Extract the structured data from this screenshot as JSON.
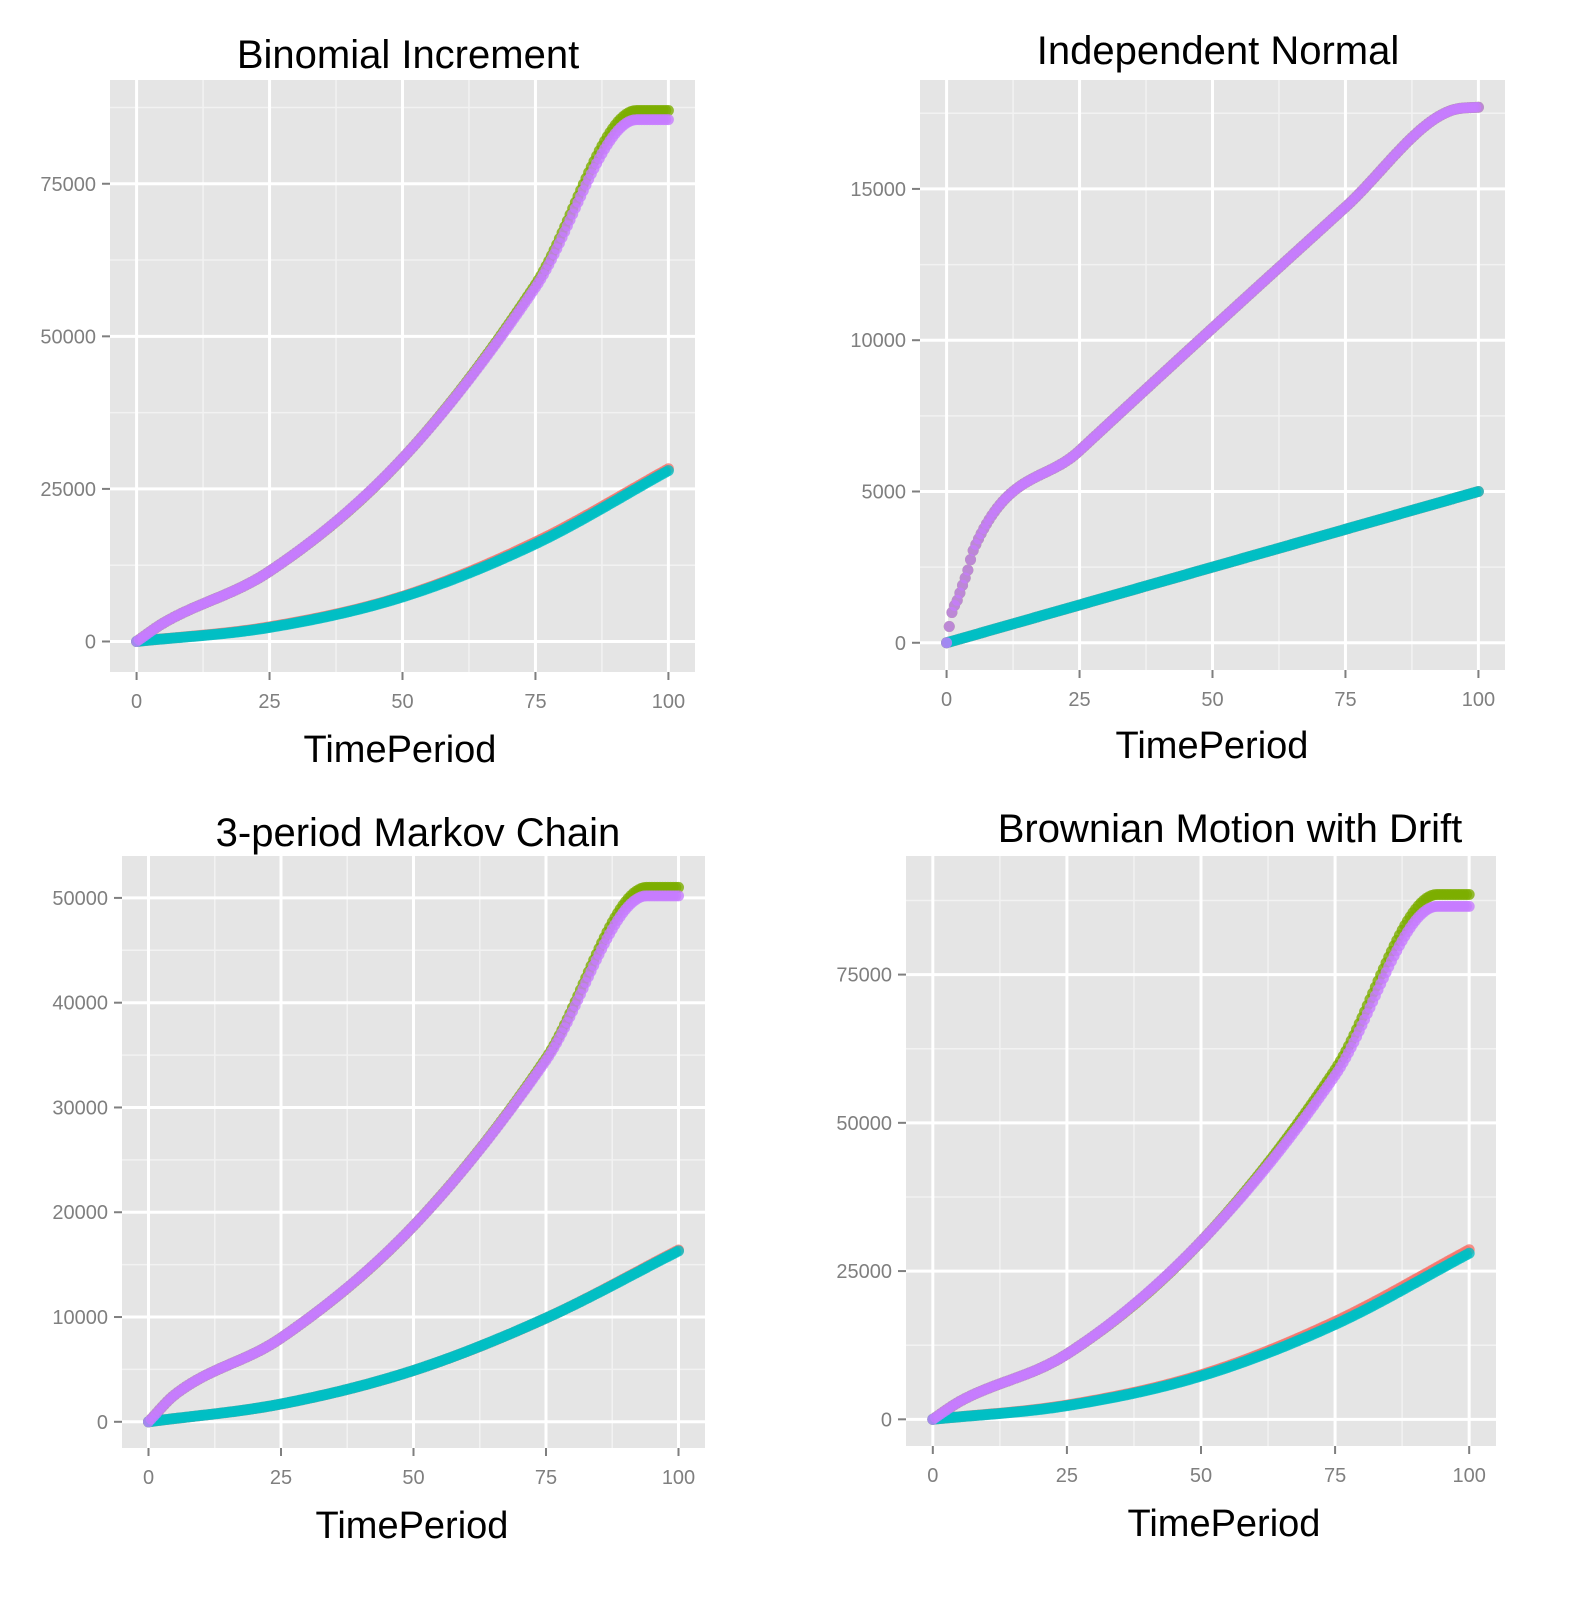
{
  "chart_data": [
    {
      "type": "scatter",
      "title": "Binomial Increment",
      "xlabel": "TimePeriod",
      "ylabel": "",
      "xlim": [
        -5,
        105
      ],
      "ylim": [
        -5000,
        92000
      ],
      "x_ticks": [
        0,
        25,
        50,
        75,
        100
      ],
      "y_ticks": [
        0,
        25000,
        50000,
        75000
      ],
      "x_tick_labels": [
        "0",
        "25",
        "50",
        "75",
        "100"
      ],
      "y_tick_labels": [
        "0",
        "25000",
        "50000",
        "75000"
      ],
      "grid": true,
      "legend": "none",
      "series": [
        {
          "color": "#F8766D",
          "x": [
            0,
            25,
            50,
            75,
            100
          ],
          "y": [
            0,
            2400,
            7400,
            16300,
            28300
          ]
        },
        {
          "color": "#7CAE00",
          "x": [
            0,
            5,
            25,
            50,
            75,
            94,
            100
          ],
          "y": [
            0,
            3000,
            11500,
            30000,
            58500,
            87000,
            87000
          ]
        },
        {
          "color": "#00BFC4",
          "x": [
            0,
            25,
            50,
            75,
            100
          ],
          "y": [
            0,
            2300,
            7300,
            16000,
            28000
          ]
        },
        {
          "color": "#C77CFF",
          "x": [
            0,
            5,
            25,
            50,
            75,
            94,
            100
          ],
          "y": [
            0,
            3000,
            11500,
            30000,
            58000,
            85500,
            85500
          ]
        }
      ]
    },
    {
      "type": "scatter",
      "title": "Independent Normal",
      "xlabel": "TimePeriod",
      "ylabel": "",
      "xlim": [
        -5,
        105
      ],
      "ylim": [
        -900,
        18600
      ],
      "x_ticks": [
        0,
        25,
        50,
        75,
        100
      ],
      "y_ticks": [
        0,
        5000,
        10000,
        15000
      ],
      "x_tick_labels": [
        "0",
        "25",
        "50",
        "75",
        "100"
      ],
      "y_tick_labels": [
        "0",
        "5000",
        "10000",
        "15000"
      ],
      "grid": true,
      "legend": "none",
      "series": [
        {
          "color": "#F8766D",
          "x": [
            0,
            100
          ],
          "y": [
            0,
            5000
          ]
        },
        {
          "color": "#7CAE00",
          "x": [
            0,
            1,
            2,
            3,
            4,
            5,
            25,
            50,
            75,
            95,
            100
          ],
          "y": [
            0,
            1000,
            1400,
            1900,
            2400,
            3050,
            6350,
            10400,
            14400,
            17600,
            17700
          ]
        },
        {
          "color": "#00BFC4",
          "x": [
            0,
            100
          ],
          "y": [
            0,
            5000
          ]
        },
        {
          "color": "#C77CFF",
          "x": [
            0,
            1,
            2,
            3,
            4,
            5,
            25,
            50,
            75,
            95,
            100
          ],
          "y": [
            0,
            1000,
            1400,
            1900,
            2400,
            3050,
            6350,
            10400,
            14400,
            17600,
            17700
          ]
        }
      ]
    },
    {
      "type": "scatter",
      "title": "3-period Markov Chain",
      "xlabel": "TimePeriod",
      "ylabel": "",
      "xlim": [
        -5,
        105
      ],
      "ylim": [
        -2500,
        54000
      ],
      "x_ticks": [
        0,
        25,
        50,
        75,
        100
      ],
      "y_ticks": [
        0,
        10000,
        20000,
        30000,
        40000,
        50000
      ],
      "x_tick_labels": [
        "0",
        "25",
        "50",
        "75",
        "100"
      ],
      "y_tick_labels": [
        "0",
        "10000",
        "20000",
        "30000",
        "40000",
        "50000"
      ],
      "grid": true,
      "legend": "none",
      "series": [
        {
          "color": "#F8766D",
          "x": [
            0,
            25,
            50,
            75,
            100
          ],
          "y": [
            0,
            1700,
            4900,
            9900,
            16400
          ]
        },
        {
          "color": "#7CAE00",
          "x": [
            0,
            5,
            25,
            50,
            75,
            94,
            100
          ],
          "y": [
            0,
            2600,
            8000,
            18700,
            34700,
            51000,
            51000
          ]
        },
        {
          "color": "#00BFC4",
          "x": [
            0,
            25,
            50,
            75,
            100
          ],
          "y": [
            0,
            1700,
            4900,
            9900,
            16300
          ]
        },
        {
          "color": "#C77CFF",
          "x": [
            0,
            5,
            25,
            50,
            75,
            94,
            100
          ],
          "y": [
            0,
            2600,
            8000,
            18700,
            34500,
            50200,
            50200
          ]
        }
      ]
    },
    {
      "type": "scatter",
      "title": "Brownian Motion with Drift",
      "xlabel": "TimePeriod",
      "ylabel": "",
      "xlim": [
        -5,
        105
      ],
      "ylim": [
        -4500,
        95000
      ],
      "x_ticks": [
        0,
        25,
        50,
        75,
        100
      ],
      "y_ticks": [
        0,
        25000,
        50000,
        75000
      ],
      "x_tick_labels": [
        "0",
        "25",
        "50",
        "75",
        "100"
      ],
      "y_tick_labels": [
        "0",
        "25000",
        "50000",
        "75000"
      ],
      "grid": true,
      "legend": "none",
      "series": [
        {
          "color": "#F8766D",
          "x": [
            0,
            25,
            50,
            75,
            100
          ],
          "y": [
            0,
            2400,
            7500,
            16500,
            28600
          ]
        },
        {
          "color": "#7CAE00",
          "x": [
            0,
            5,
            25,
            50,
            75,
            94,
            100
          ],
          "y": [
            0,
            3000,
            11000,
            30000,
            59000,
            88500,
            88500
          ]
        },
        {
          "color": "#00BFC4",
          "x": [
            0,
            25,
            50,
            75,
            100
          ],
          "y": [
            0,
            2300,
            7300,
            16000,
            28000
          ]
        },
        {
          "color": "#C77CFF",
          "x": [
            0,
            5,
            25,
            50,
            75,
            94,
            100
          ],
          "y": [
            0,
            3000,
            11000,
            30000,
            58000,
            86500,
            86500
          ]
        }
      ]
    }
  ]
}
